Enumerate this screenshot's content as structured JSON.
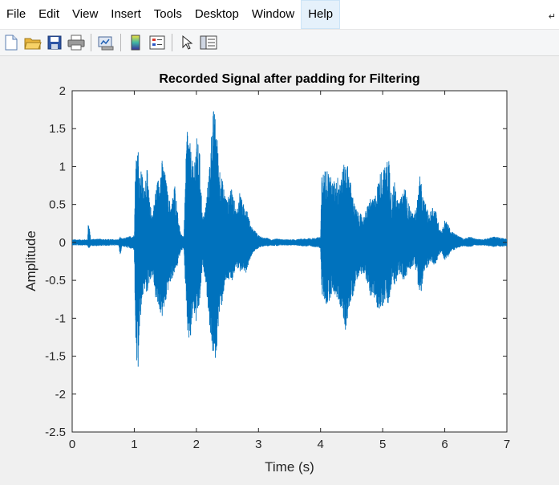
{
  "menu": {
    "items": [
      "File",
      "Edit",
      "View",
      "Insert",
      "Tools",
      "Desktop",
      "Window",
      "Help"
    ],
    "active": "Help"
  },
  "toolbar": {
    "icons": [
      "new-figure-icon",
      "open-file-icon",
      "save-icon",
      "print-icon",
      "link-plot-icon",
      "insert-colorbar-icon",
      "insert-legend-icon",
      "edit-plot-pointer-icon",
      "property-inspector-icon"
    ]
  },
  "colors": {
    "signal": "#0072bd",
    "axes_bg": "#ffffff",
    "figure_bg": "#f0f0f0"
  },
  "chart_data": {
    "type": "line",
    "title": "Recorded Signal after padding for Filtering",
    "xlabel": "Time (s)",
    "ylabel": "Amplitude",
    "xlim": [
      0,
      7
    ],
    "ylim": [
      -2.5,
      2
    ],
    "xticks": [
      0,
      1,
      2,
      3,
      4,
      5,
      6,
      7
    ],
    "yticks": [
      2,
      1.5,
      1,
      0.5,
      0,
      -0.5,
      -1,
      -1.5,
      -2,
      -2.5
    ],
    "grid": false,
    "legend": false,
    "series": [
      {
        "envelope_t": [
          0,
          0.25,
          0.26,
          0.3,
          0.34,
          0.75,
          0.77,
          0.8,
          1.0,
          1.02,
          1.06,
          1.08,
          1.12,
          1.15,
          1.2,
          1.25,
          1.3,
          1.35,
          1.4,
          1.45,
          1.5,
          1.55,
          1.6,
          1.65,
          1.7,
          1.75,
          1.8,
          1.85,
          1.9,
          1.95,
          2.0,
          2.05,
          2.1,
          2.15,
          2.2,
          2.25,
          2.28,
          2.32,
          2.36,
          2.4,
          2.45,
          2.5,
          2.55,
          2.6,
          2.65,
          2.7,
          2.75,
          2.8,
          2.85,
          2.9,
          2.95,
          3.0,
          3.05,
          3.1,
          3.15,
          3.2,
          3.3,
          3.4,
          3.6,
          3.7,
          3.9,
          4.0,
          4.02,
          4.1,
          4.2,
          4.3,
          4.35,
          4.4,
          4.45,
          4.5,
          4.55,
          4.6,
          4.7,
          4.8,
          4.85,
          4.9,
          4.95,
          5.0,
          5.05,
          5.1,
          5.15,
          5.2,
          5.25,
          5.3,
          5.35,
          5.4,
          5.45,
          5.5,
          5.55,
          5.6,
          5.65,
          5.7,
          5.75,
          5.8,
          5.85,
          5.9,
          5.95,
          6.0,
          6.05,
          6.1,
          6.2,
          6.3,
          6.4,
          6.5,
          6.6,
          6.8,
          7.0
        ],
        "envelope_upper": [
          0.04,
          0.04,
          0.3,
          0.04,
          0.05,
          0.04,
          0.08,
          0.05,
          0.1,
          1.1,
          1.4,
          0.8,
          1.0,
          0.7,
          1.05,
          0.5,
          0.4,
          0.75,
          0.9,
          1.1,
          0.9,
          0.6,
          0.5,
          0.8,
          0.4,
          0.1,
          0.1,
          1.6,
          1.3,
          1.0,
          1.4,
          1.25,
          0.3,
          0.5,
          0.9,
          1.6,
          1.78,
          1.6,
          1.1,
          0.9,
          0.7,
          0.55,
          0.75,
          0.6,
          0.4,
          0.7,
          0.5,
          0.55,
          0.3,
          0.2,
          0.15,
          0.1,
          0.07,
          0.06,
          0.06,
          0.04,
          0.05,
          0.04,
          0.04,
          0.05,
          0.06,
          0.08,
          0.9,
          1.0,
          0.8,
          0.9,
          0.95,
          1.1,
          1.0,
          0.7,
          0.5,
          0.4,
          0.35,
          0.6,
          0.55,
          0.7,
          0.9,
          1.0,
          1.0,
          1.2,
          0.6,
          0.9,
          0.5,
          0.6,
          0.8,
          0.55,
          0.45,
          0.35,
          0.5,
          0.9,
          0.6,
          0.5,
          0.35,
          0.5,
          0.45,
          0.25,
          0.15,
          0.3,
          0.25,
          0.15,
          0.1,
          0.05,
          0.08,
          0.05,
          0.04,
          0.08,
          0.05
        ],
        "envelope_lower": [
          -0.04,
          -0.04,
          -0.1,
          -0.04,
          -0.05,
          -0.04,
          -0.2,
          -0.05,
          -0.1,
          -1.3,
          -2.0,
          -1.2,
          -0.9,
          -0.6,
          -0.7,
          -0.5,
          -0.45,
          -0.8,
          -0.9,
          -1.0,
          -0.85,
          -0.6,
          -0.5,
          -0.4,
          -0.3,
          -0.1,
          -0.1,
          -1.2,
          -1.4,
          -0.9,
          -1.1,
          -0.85,
          -0.3,
          -0.5,
          -1.0,
          -1.4,
          -1.6,
          -1.55,
          -1.0,
          -0.9,
          -0.6,
          -0.5,
          -0.55,
          -0.45,
          -0.3,
          -0.5,
          -0.35,
          -0.4,
          -0.25,
          -0.15,
          -0.1,
          -0.08,
          -0.06,
          -0.05,
          -0.05,
          -0.04,
          -0.05,
          -0.04,
          -0.04,
          -0.05,
          -0.06,
          -0.08,
          -0.7,
          -0.85,
          -0.65,
          -0.8,
          -0.95,
          -1.2,
          -0.9,
          -0.8,
          -0.6,
          -0.45,
          -0.4,
          -0.7,
          -0.75,
          -0.85,
          -0.9,
          -0.85,
          -0.75,
          -0.9,
          -0.5,
          -0.6,
          -0.4,
          -0.45,
          -0.55,
          -0.4,
          -0.35,
          -0.3,
          -0.4,
          -0.8,
          -0.5,
          -0.35,
          -0.3,
          -0.3,
          -0.3,
          -0.2,
          -0.12,
          -0.25,
          -0.2,
          -0.12,
          -0.08,
          -0.05,
          -0.06,
          -0.04,
          -0.04,
          -0.06,
          -0.05
        ]
      }
    ]
  }
}
